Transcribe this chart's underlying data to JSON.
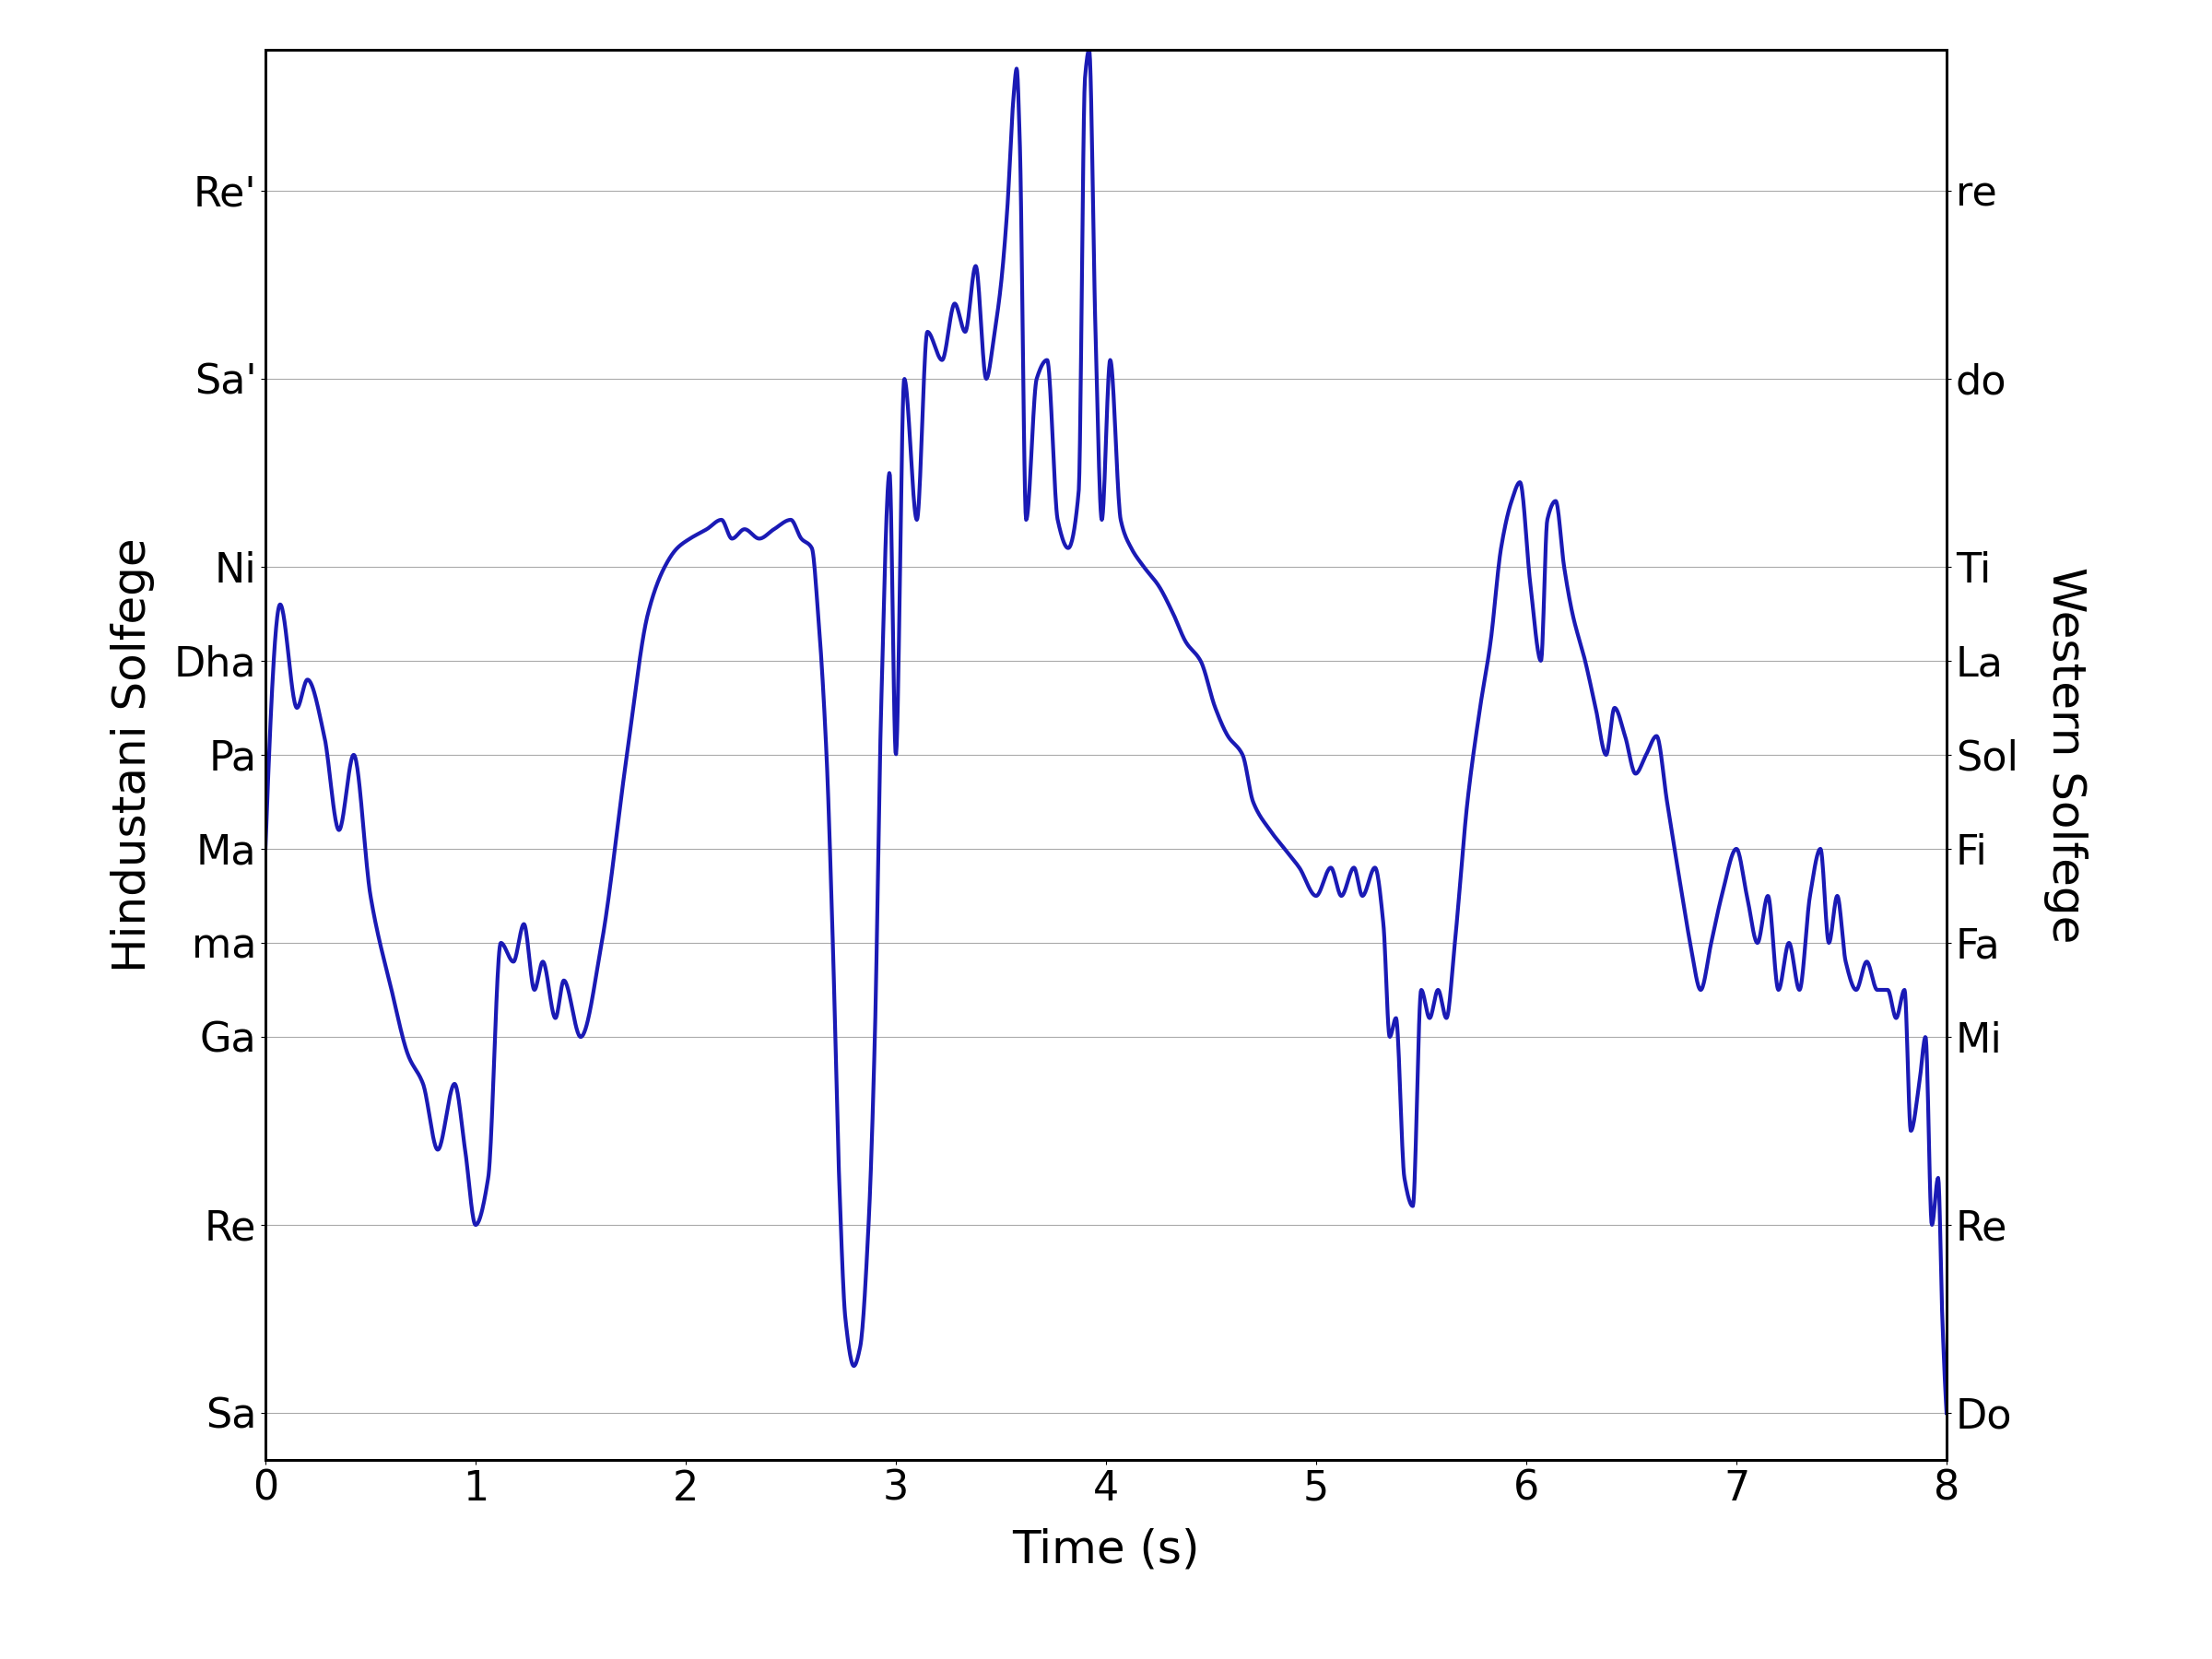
{
  "title": "",
  "xlabel": "Time (s)",
  "ylabel_left": "Hindustani Solfege",
  "ylabel_right": "Western Solfege",
  "xlim": [
    0,
    8
  ],
  "ylim": [
    -0.5,
    14.5
  ],
  "line_color": "#1a1ab5",
  "line_width": 3.0,
  "background_color": "#ffffff",
  "grid_color": "#aaaaaa",
  "hindustani_labels": [
    "Sa",
    "Re",
    "Ga",
    "ma",
    "Ma",
    "Pa",
    "Dha",
    "Ni",
    "Sa'",
    "Re'"
  ],
  "hindustani_ticks": [
    0,
    2,
    4,
    5,
    6,
    7,
    8,
    9,
    11,
    13
  ],
  "western_labels": [
    "Do",
    "Re",
    "Mi",
    "Fa",
    "Fi",
    "Sol",
    "La",
    "Ti",
    "do",
    "re"
  ],
  "western_ticks": [
    0,
    2,
    4,
    5,
    6,
    7,
    8,
    9,
    11,
    13
  ],
  "tick_fontsize": 32,
  "label_fontsize": 36
}
